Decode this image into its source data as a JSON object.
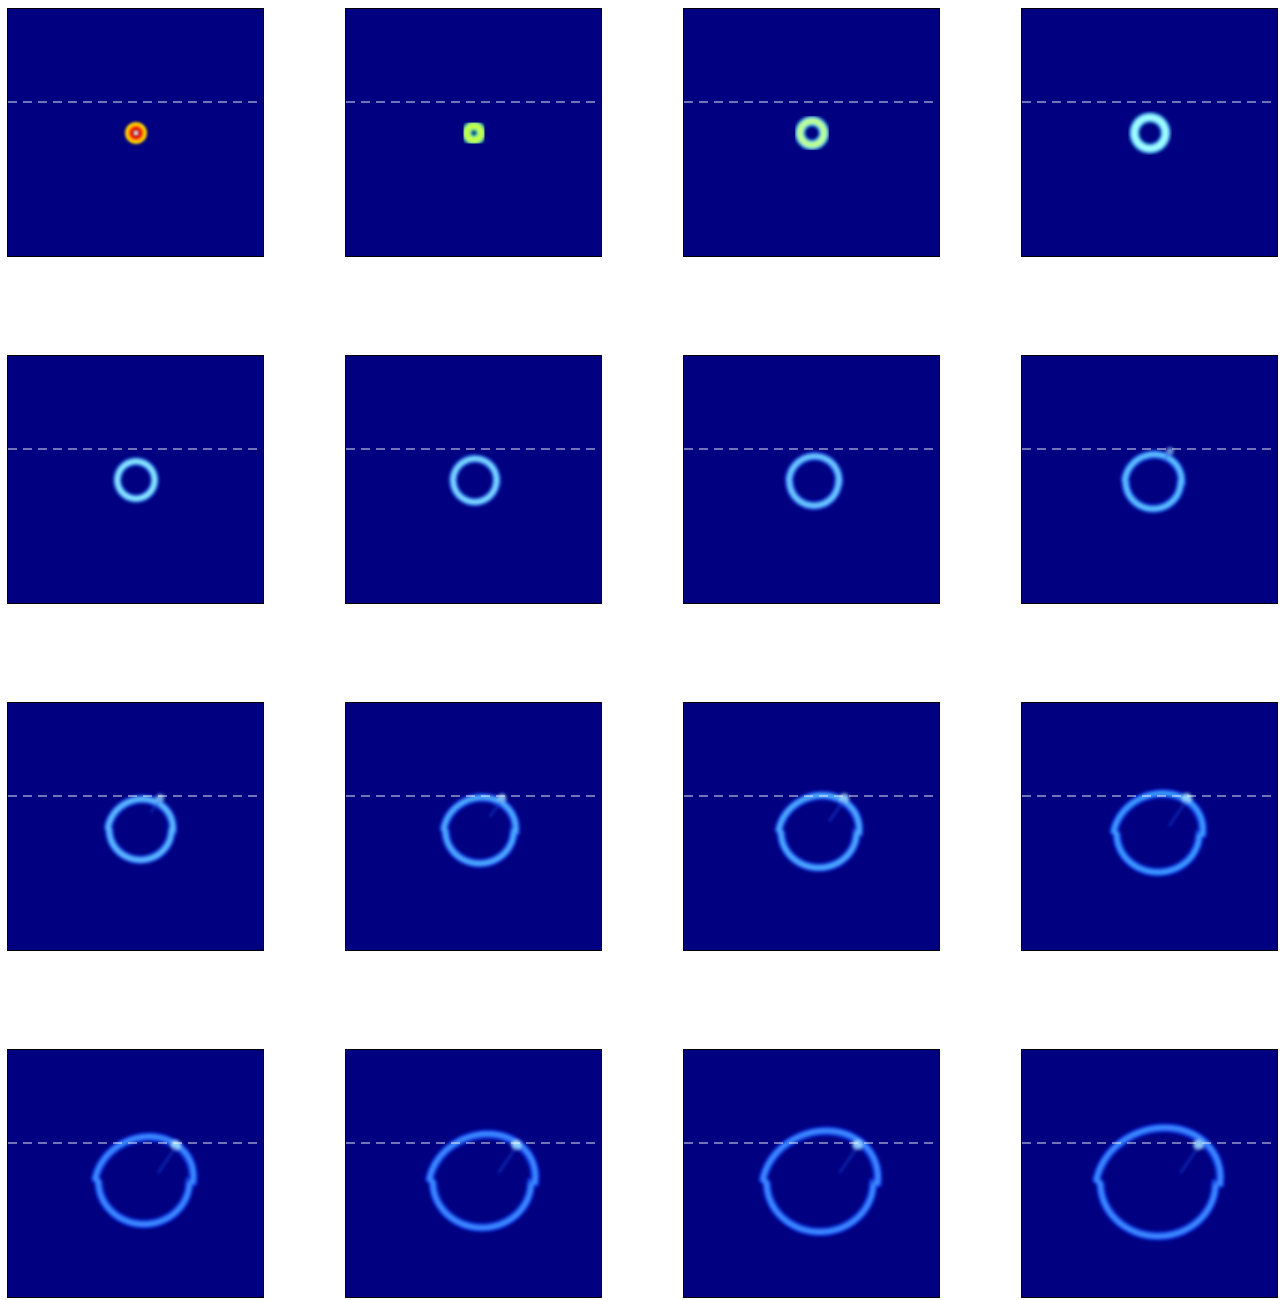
{
  "figure": {
    "background_color": "#000080",
    "interface_line_color": "#ffffff",
    "rows": 4,
    "columns": 4,
    "panels": [
      {
        "rx": 0.12,
        "ry": 0.12,
        "ring": 0.0,
        "colors": [
          "#b00000",
          "#ff3000",
          "#ffd000"
        ]
      },
      {
        "rx": 0.6,
        "ry": 0.6,
        "ring": 0.0,
        "colors": [
          "#3070ff",
          "#c8ff40",
          "#40ffb0"
        ]
      },
      {
        "rx": 1.0,
        "ry": 1.0,
        "ring": 0.0,
        "colors": [
          "#0050ff",
          "#c0ff90",
          "#40e0ff"
        ]
      },
      {
        "rx": 1.3,
        "ry": 1.3,
        "ring": 0.0,
        "colors": [
          "#0060ff",
          "#a0ffff",
          "#40c0ff"
        ]
      },
      {
        "rx": 1.55,
        "ry": 1.55,
        "ring": 0.0,
        "colors": [
          "#0050ff",
          "#90f0ff",
          "#3090ff"
        ]
      },
      {
        "rx": 1.8,
        "ry": 1.8,
        "ring": 0.1,
        "colors": [
          "#0040ff",
          "#80e0ff",
          "#3080ff"
        ]
      },
      {
        "rx": 2.05,
        "ry": 2.05,
        "ring": 0.25,
        "colors": [
          "#0040ff",
          "#70d0ff",
          "#3070ff"
        ]
      },
      {
        "rx": 2.3,
        "ry": 2.25,
        "ring": 0.4,
        "colors": [
          "#0040ff",
          "#60c8ff",
          "#2060ff"
        ]
      },
      {
        "rx": 2.6,
        "ry": 2.5,
        "ring": 0.55,
        "colors": [
          "#0040ff",
          "#60c0ff",
          "#2060ff"
        ]
      },
      {
        "rx": 2.85,
        "ry": 2.7,
        "ring": 0.7,
        "colors": [
          "#0040ff",
          "#50b0ff",
          "#2050ff"
        ]
      },
      {
        "rx": 3.15,
        "ry": 2.95,
        "ring": 0.85,
        "colors": [
          "#0040ff",
          "#50b0ff",
          "#2050ff"
        ]
      },
      {
        "rx": 3.45,
        "ry": 3.2,
        "ring": 1.0,
        "colors": [
          "#0040ff",
          "#40a0ff",
          "#1040ff"
        ]
      },
      {
        "rx": 3.8,
        "ry": 3.55,
        "ring": 1.0,
        "colors": [
          "#0040ff",
          "#4090ff",
          "#1040ff"
        ]
      },
      {
        "rx": 4.1,
        "ry": 3.8,
        "ring": 1.0,
        "colors": [
          "#0040ff",
          "#4090ff",
          "#1040ff"
        ]
      },
      {
        "rx": 4.45,
        "ry": 4.1,
        "ring": 1.0,
        "colors": [
          "#0040ff",
          "#4090ff",
          "#1040ff"
        ]
      },
      {
        "rx": 4.8,
        "ry": 4.4,
        "ring": 1.0,
        "colors": [
          "#0040ff",
          "#4090ff",
          "#1040ff"
        ]
      }
    ]
  }
}
